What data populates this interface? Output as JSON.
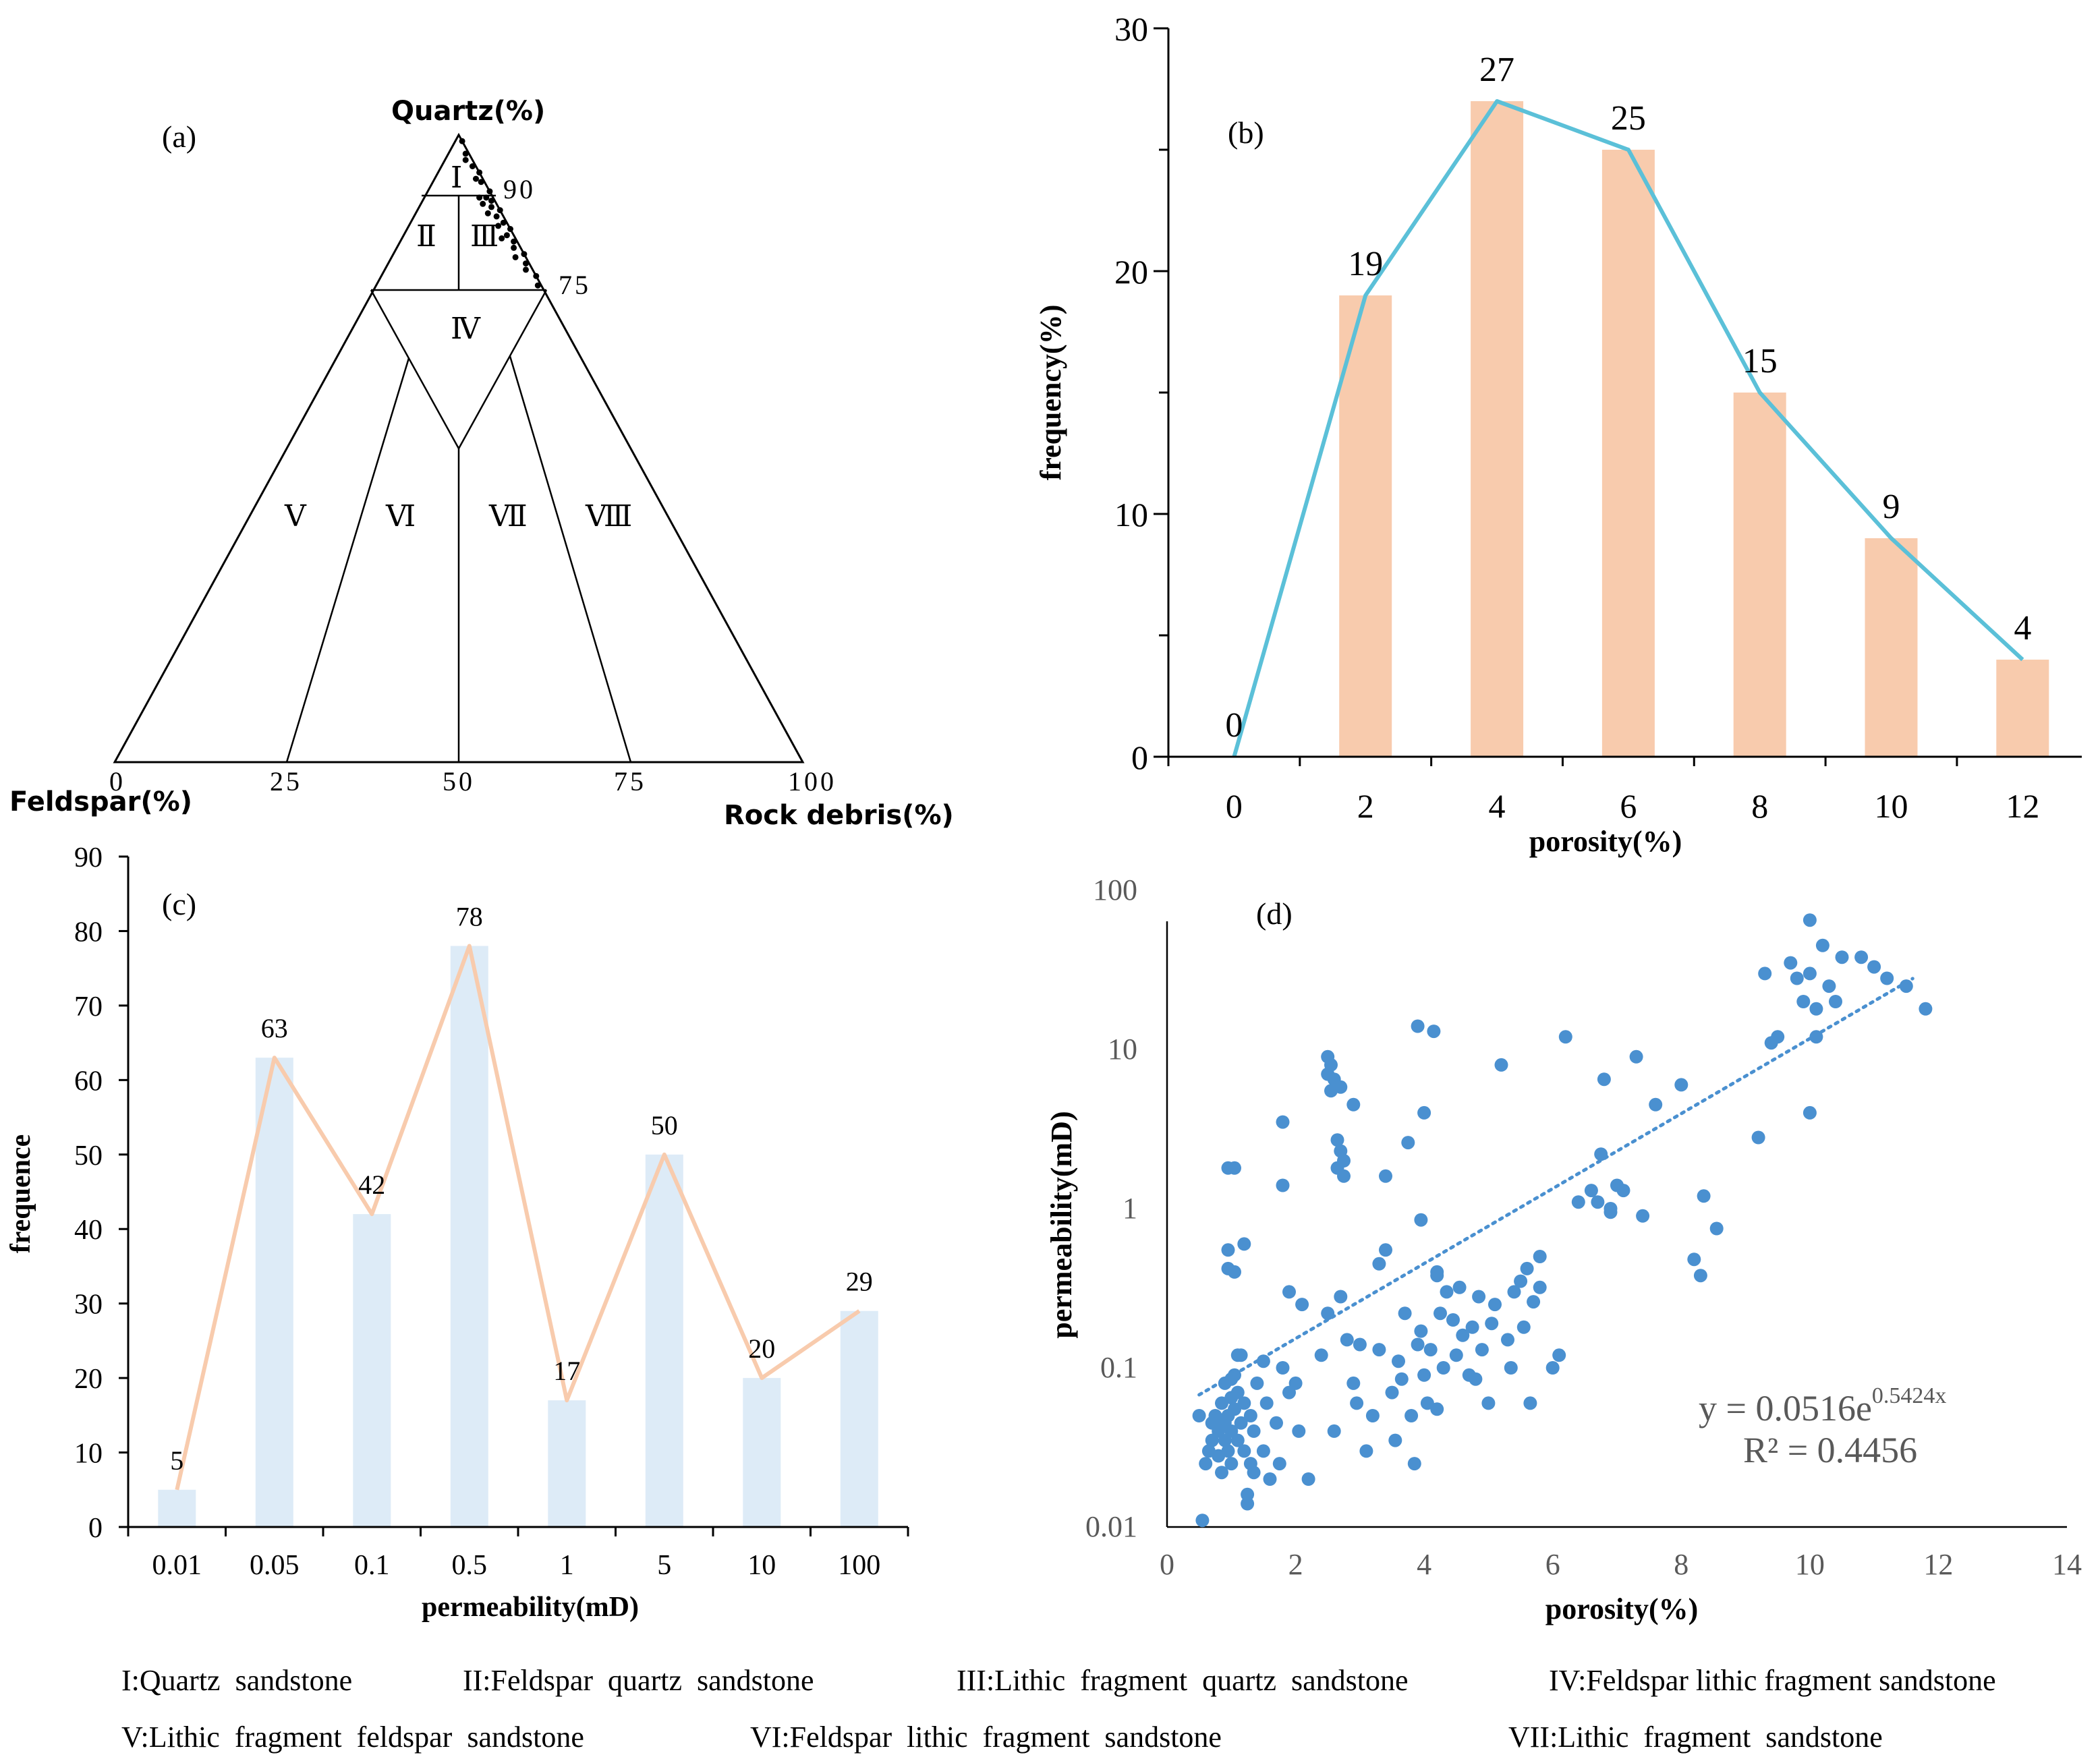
{
  "chart_data": [
    {
      "id": "a",
      "type": "ternary",
      "panel_label": "(a)",
      "title": "",
      "apex_top_label": "Quartz(%)",
      "apex_left_label": "Feldspar(%)",
      "apex_right_label": "Rock debris(%)",
      "edge_ticks": [
        "90",
        "75"
      ],
      "base_ticks": [
        "0",
        "25",
        "50",
        "75",
        "100"
      ],
      "zones": [
        "Ⅰ",
        "Ⅱ",
        "Ⅲ",
        "Ⅳ",
        "Ⅴ",
        "Ⅵ",
        "Ⅶ",
        "Ⅷ"
      ],
      "samples": [
        {
          "q": 99,
          "f": 0,
          "r": 1
        },
        {
          "q": 97,
          "f": 0.5,
          "r": 2.5
        },
        {
          "q": 96,
          "f": 1,
          "r": 3
        },
        {
          "q": 95,
          "f": 0.5,
          "r": 4.5
        },
        {
          "q": 94,
          "f": 0,
          "r": 6
        },
        {
          "q": 93,
          "f": 1,
          "r": 6
        },
        {
          "q": 92.5,
          "f": 0.5,
          "r": 7
        },
        {
          "q": 91,
          "f": 0,
          "r": 9
        },
        {
          "q": 90,
          "f": 1,
          "r": 9
        },
        {
          "q": 90,
          "f": 2,
          "r": 8
        },
        {
          "q": 89.5,
          "f": 0.5,
          "r": 10
        },
        {
          "q": 89,
          "f": 2,
          "r": 9
        },
        {
          "q": 88.5,
          "f": 1,
          "r": 10.5
        },
        {
          "q": 88,
          "f": 0,
          "r": 12
        },
        {
          "q": 87.5,
          "f": 2,
          "r": 10.5
        },
        {
          "q": 87,
          "f": 1,
          "r": 12
        },
        {
          "q": 86,
          "f": 0.5,
          "r": 13.5
        },
        {
          "q": 85.5,
          "f": 1.5,
          "r": 13
        },
        {
          "q": 85,
          "f": 0,
          "r": 15
        },
        {
          "q": 84,
          "f": 1,
          "r": 15
        },
        {
          "q": 83.5,
          "f": 2,
          "r": 14.5
        },
        {
          "q": 83,
          "f": 0.5,
          "r": 16.5
        },
        {
          "q": 82,
          "f": 1,
          "r": 17
        },
        {
          "q": 81,
          "f": 0,
          "r": 19
        },
        {
          "q": 80.5,
          "f": 1.5,
          "r": 18
        },
        {
          "q": 79.5,
          "f": 0.5,
          "r": 20
        },
        {
          "q": 78.5,
          "f": 1,
          "r": 20.5
        },
        {
          "q": 77.5,
          "f": 0,
          "r": 22.5
        },
        {
          "q": 76,
          "f": 0.5,
          "r": 23.5
        }
      ]
    },
    {
      "id": "b",
      "type": "bar+line",
      "panel_label": "(b)",
      "title": "",
      "xlabel": "porosity(%)",
      "ylabel": "frequency(%)",
      "categories": [
        "0",
        "2",
        "4",
        "6",
        "8",
        "10",
        "12"
      ],
      "x": [
        0,
        2,
        4,
        6,
        8,
        10,
        12
      ],
      "values": [
        0,
        19,
        27,
        25,
        15,
        9,
        4
      ],
      "data_labels": [
        "0",
        "19",
        "27",
        "25",
        "15",
        "9",
        "4"
      ],
      "yticks": [
        "0",
        "10",
        "20",
        "30"
      ],
      "ylim": [
        0,
        30
      ],
      "bar_color": "#F8CBAD",
      "line_color": "#5BC0D8"
    },
    {
      "id": "c",
      "type": "bar+line",
      "panel_label": "(c)",
      "title": "",
      "xlabel": "permeability(mD)",
      "ylabel": "frequence",
      "categories": [
        "0.01",
        "0.05",
        "0.1",
        "0.5",
        "1",
        "5",
        "10",
        "100"
      ],
      "values": [
        5,
        63,
        42,
        78,
        17,
        50,
        20,
        29
      ],
      "data_labels": [
        "5",
        "63",
        "42",
        "78",
        "17",
        "50",
        "20",
        "29"
      ],
      "yticks": [
        "0",
        "10",
        "20",
        "30",
        "40",
        "50",
        "60",
        "70",
        "80",
        "90"
      ],
      "ylim": [
        0,
        90
      ],
      "bar_color": "#DDEBF7",
      "line_color": "#F8CBAD"
    },
    {
      "id": "d",
      "type": "scatter",
      "panel_label": "(d)",
      "title": "",
      "xlabel": "porosity(%)",
      "ylabel": "permeability(mD)",
      "xlim": [
        0,
        14
      ],
      "ylim": [
        0.01,
        100
      ],
      "yscale": "log",
      "xticks": [
        "0",
        "2",
        "4",
        "6",
        "8",
        "10",
        "12",
        "14"
      ],
      "yticks": [
        "0.01",
        "0.1",
        "1",
        "10",
        "100"
      ],
      "point_color": "#4A90D0",
      "trendline": {
        "type": "exponential",
        "a": 0.0516,
        "b": 0.5424,
        "x_range": [
          0.5,
          11.6
        ],
        "color": "#4A90D0"
      },
      "equation_prefix": "y = 0.0516e",
      "equation_exponent": "0.5424x",
      "r2_label": "R² = 0.4456",
      "points": [
        [
          0.5,
          0.05
        ],
        [
          0.55,
          0.011
        ],
        [
          0.6,
          0.025
        ],
        [
          0.65,
          0.03
        ],
        [
          0.7,
          0.045
        ],
        [
          0.7,
          0.035
        ],
        [
          0.75,
          0.05
        ],
        [
          0.8,
          0.04
        ],
        [
          0.8,
          0.028
        ],
        [
          0.85,
          0.06
        ],
        [
          0.85,
          0.022
        ],
        [
          0.9,
          0.045
        ],
        [
          0.9,
          0.035
        ],
        [
          0.9,
          0.08
        ],
        [
          0.95,
          0.03
        ],
        [
          0.95,
          0.05
        ],
        [
          1.0,
          0.065
        ],
        [
          1.0,
          0.04
        ],
        [
          1.0,
          0.025
        ],
        [
          1.05,
          0.09
        ],
        [
          1.05,
          0.055
        ],
        [
          1.1,
          0.035
        ],
        [
          1.1,
          0.07
        ],
        [
          1.15,
          0.045
        ],
        [
          1.2,
          0.03
        ],
        [
          1.2,
          0.06
        ],
        [
          1.25,
          0.014
        ],
        [
          1.3,
          0.025
        ],
        [
          1.3,
          0.05
        ],
        [
          1.35,
          0.04
        ],
        [
          1.4,
          0.08
        ],
        [
          1.5,
          0.03
        ],
        [
          1.55,
          0.06
        ],
        [
          1.6,
          0.02
        ],
        [
          1.7,
          0.045
        ],
        [
          1.75,
          0.025
        ],
        [
          1.8,
          0.1
        ],
        [
          1.9,
          0.07
        ],
        [
          0.95,
          1.8
        ],
        [
          1.05,
          1.8
        ],
        [
          0.95,
          0.55
        ],
        [
          0.95,
          0.42
        ],
        [
          1.05,
          0.4
        ],
        [
          1.2,
          0.6
        ],
        [
          1.15,
          0.12
        ],
        [
          1.25,
          0.016
        ],
        [
          1.0,
          0.085
        ],
        [
          1.1,
          0.12
        ],
        [
          1.35,
          0.022
        ],
        [
          1.5,
          0.11
        ],
        [
          1.8,
          3.5
        ],
        [
          1.8,
          1.4
        ],
        [
          1.9,
          0.3
        ],
        [
          2.0,
          0.08
        ],
        [
          2.05,
          0.04
        ],
        [
          2.1,
          0.25
        ],
        [
          2.2,
          0.02
        ],
        [
          2.4,
          0.12
        ],
        [
          2.5,
          0.22
        ],
        [
          2.6,
          0.04
        ],
        [
          2.5,
          9
        ],
        [
          2.55,
          8
        ],
        [
          2.5,
          7
        ],
        [
          2.6,
          6.5
        ],
        [
          2.55,
          5.5
        ],
        [
          2.7,
          5.8
        ],
        [
          2.65,
          2.7
        ],
        [
          2.7,
          2.3
        ],
        [
          2.75,
          2.0
        ],
        [
          2.65,
          1.8
        ],
        [
          2.75,
          1.6
        ],
        [
          2.9,
          4.5
        ],
        [
          2.7,
          0.28
        ],
        [
          2.8,
          0.15
        ],
        [
          2.9,
          0.08
        ],
        [
          2.95,
          0.06
        ],
        [
          3.0,
          0.14
        ],
        [
          3.1,
          0.03
        ],
        [
          3.2,
          0.05
        ],
        [
          3.3,
          0.13
        ],
        [
          3.3,
          0.45
        ],
        [
          3.4,
          0.55
        ],
        [
          3.4,
          1.6
        ],
        [
          3.5,
          0.07
        ],
        [
          3.55,
          0.035
        ],
        [
          3.6,
          0.11
        ],
        [
          3.65,
          0.085
        ],
        [
          3.7,
          0.22
        ],
        [
          3.8,
          0.05
        ],
        [
          3.85,
          0.025
        ],
        [
          3.9,
          0.14
        ],
        [
          3.95,
          0.17
        ],
        [
          4.0,
          0.09
        ],
        [
          4.05,
          0.06
        ],
        [
          4.1,
          0.13
        ],
        [
          4.2,
          0.055
        ],
        [
          4.25,
          0.22
        ],
        [
          4.3,
          0.1
        ],
        [
          3.75,
          2.6
        ],
        [
          3.9,
          14
        ],
        [
          4.15,
          13
        ],
        [
          4.0,
          4.0
        ],
        [
          3.95,
          0.85
        ],
        [
          4.2,
          0.38
        ],
        [
          4.35,
          0.3
        ],
        [
          4.45,
          0.2
        ],
        [
          4.5,
          0.12
        ],
        [
          4.55,
          0.32
        ],
        [
          4.6,
          0.16
        ],
        [
          4.7,
          0.09
        ],
        [
          4.75,
          0.18
        ],
        [
          4.8,
          0.085
        ],
        [
          4.85,
          0.28
        ],
        [
          4.9,
          0.13
        ],
        [
          5.0,
          0.06
        ],
        [
          5.05,
          0.19
        ],
        [
          5.1,
          0.25
        ],
        [
          5.2,
          8
        ],
        [
          5.3,
          0.15
        ],
        [
          5.35,
          0.1
        ],
        [
          5.4,
          0.3
        ],
        [
          5.5,
          0.35
        ],
        [
          5.55,
          0.18
        ],
        [
          5.6,
          0.42
        ],
        [
          5.65,
          0.06
        ],
        [
          5.7,
          0.26
        ],
        [
          5.8,
          0.32
        ],
        [
          6.0,
          0.1
        ],
        [
          6.1,
          0.12
        ],
        [
          6.2,
          12
        ],
        [
          6.4,
          1.1
        ],
        [
          6.6,
          1.3
        ],
        [
          6.7,
          1.1
        ],
        [
          6.75,
          2.2
        ],
        [
          6.8,
          6.5
        ],
        [
          6.9,
          1.0
        ],
        [
          7.0,
          1.4
        ],
        [
          7.1,
          1.3
        ],
        [
          7.3,
          9
        ],
        [
          7.4,
          0.9
        ],
        [
          7.6,
          4.5
        ],
        [
          8.0,
          6.0
        ],
        [
          8.2,
          0.48
        ],
        [
          8.3,
          0.38
        ],
        [
          8.35,
          1.2
        ],
        [
          8.55,
          0.75
        ],
        [
          9.2,
          2.8
        ],
        [
          9.3,
          30
        ],
        [
          9.4,
          11
        ],
        [
          9.5,
          12
        ],
        [
          10.0,
          65
        ],
        [
          10.0,
          30
        ],
        [
          9.7,
          35
        ],
        [
          9.8,
          28
        ],
        [
          10.1,
          18
        ],
        [
          10.2,
          45
        ],
        [
          10.3,
          25
        ],
        [
          10.4,
          20
        ],
        [
          10.5,
          38
        ],
        [
          10.8,
          38
        ],
        [
          11.0,
          33
        ],
        [
          11.2,
          28
        ],
        [
          11.5,
          25
        ],
        [
          11.8,
          18
        ],
        [
          10.0,
          4.0
        ],
        [
          9.9,
          20
        ],
        [
          10.1,
          12
        ],
        [
          4.2,
          0.4
        ],
        [
          5.8,
          0.5
        ],
        [
          6.9,
          0.95
        ]
      ]
    }
  ],
  "legend_notes": {
    "row1": [
      "I:Quartz  sandstone",
      "II:Feldspar  quartz  sandstone",
      "III:Lithic  fragment  quartz  sandstone",
      "IV:Feldspar lithic fragment sandstone"
    ],
    "row2": [
      "V:Lithic  fragment  feldspar  sandstone",
      "VI:Feldspar  lithic  fragment  sandstone",
      "VII:Lithic  fragment  sandstone"
    ]
  }
}
